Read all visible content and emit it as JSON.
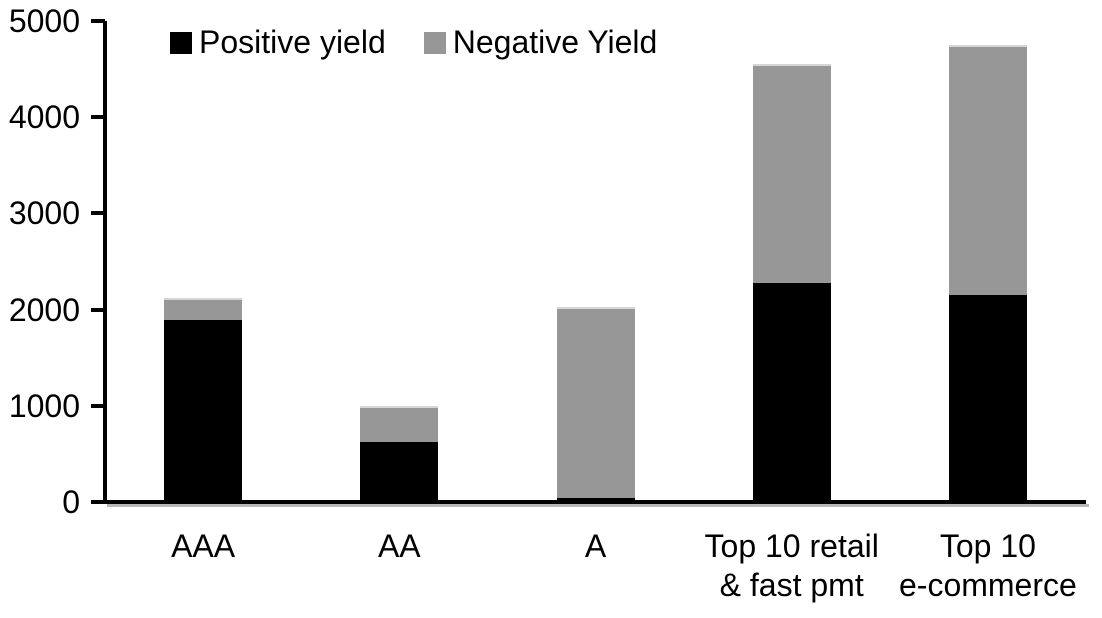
{
  "chart_data": {
    "type": "bar",
    "stacked": true,
    "title": "",
    "xlabel": "",
    "ylabel": "",
    "categories": [
      "AAA",
      "AA",
      "A",
      "Top 10 retail\n& fast pmt",
      "Top 10\ne-commerce"
    ],
    "series": [
      {
        "name": "Positive yield",
        "color": "#000000",
        "values": [
          1890,
          620,
          40,
          2280,
          2150
        ]
      },
      {
        "name": "Negative Yield",
        "color": "#979797",
        "values": [
          230,
          380,
          1990,
          2270,
          2600
        ]
      }
    ],
    "totals": [
      2120,
      1000,
      2030,
      4550,
      4750
    ],
    "ylim": [
      0,
      5000
    ],
    "yticks": [
      0,
      1000,
      2000,
      3000,
      4000,
      5000
    ],
    "grid": false,
    "legend_position": "top",
    "colors": {
      "positive": "#000000",
      "negative": "#979797",
      "axis": "#000000",
      "axis_shadow": "#b7b7b7",
      "background": "#ffffff"
    }
  }
}
